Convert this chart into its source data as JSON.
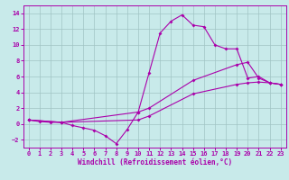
{
  "xlabel": "Windchill (Refroidissement éolien,°C)",
  "bg_color": "#c8eaea",
  "grid_color": "#a0c4c4",
  "line_color": "#aa00aa",
  "spine_color": "#aa00aa",
  "xlim": [
    -0.5,
    23.5
  ],
  "ylim": [
    -3,
    15
  ],
  "xticks": [
    0,
    1,
    2,
    3,
    4,
    5,
    6,
    7,
    8,
    9,
    10,
    11,
    12,
    13,
    14,
    15,
    16,
    17,
    18,
    19,
    20,
    21,
    22,
    23
  ],
  "yticks": [
    -2,
    0,
    2,
    4,
    6,
    8,
    10,
    12,
    14
  ],
  "line1_x": [
    0,
    1,
    2,
    3,
    4,
    5,
    6,
    7,
    8,
    9,
    10,
    11,
    12,
    13,
    14,
    15,
    16,
    17,
    18,
    19,
    20,
    21,
    22,
    23
  ],
  "line1_y": [
    0.5,
    0.3,
    0.2,
    0.2,
    -0.2,
    -0.5,
    -0.8,
    -1.5,
    -2.5,
    -0.7,
    1.5,
    6.5,
    11.5,
    13.0,
    13.8,
    12.5,
    12.3,
    10.0,
    9.5,
    9.5,
    5.8,
    6.0,
    5.2,
    5.0
  ],
  "line2_x": [
    0,
    3,
    10,
    11,
    15,
    19,
    20,
    21,
    22,
    23
  ],
  "line2_y": [
    0.5,
    0.2,
    1.5,
    2.0,
    5.5,
    7.5,
    7.8,
    5.8,
    5.2,
    5.0
  ],
  "line3_x": [
    0,
    3,
    10,
    11,
    15,
    19,
    20,
    21,
    22,
    23
  ],
  "line3_y": [
    0.5,
    0.2,
    0.5,
    1.0,
    3.8,
    5.0,
    5.2,
    5.3,
    5.2,
    5.0
  ]
}
